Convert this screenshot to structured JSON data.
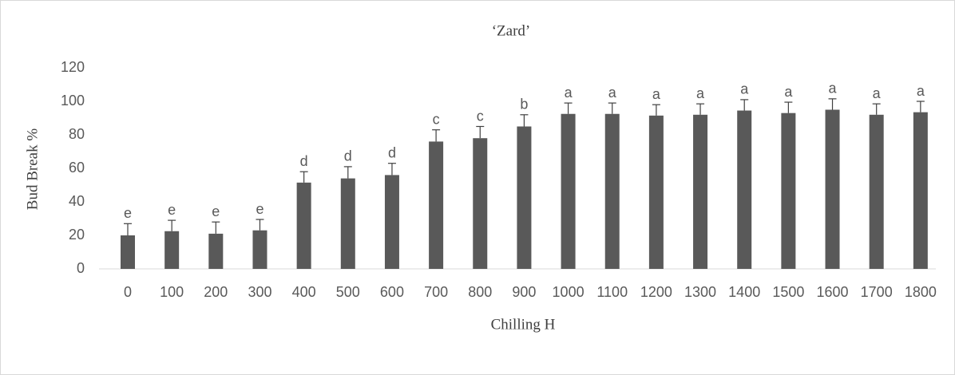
{
  "chart_data": {
    "type": "bar",
    "title": "‘Zard’",
    "x_label": "Chilling H",
    "y_label": "Bud Break %",
    "categories": [
      "0",
      "100",
      "200",
      "300",
      "400",
      "500",
      "600",
      "700",
      "800",
      "900",
      "1000",
      "1100",
      "1200",
      "1300",
      "1400",
      "1500",
      "1600",
      "1700",
      "1800"
    ],
    "values": [
      20,
      22.5,
      21,
      23,
      51.5,
      54,
      56,
      76,
      78,
      85,
      92.5,
      92.5,
      91.5,
      92,
      94.5,
      93,
      95,
      92,
      93.5
    ],
    "errors": [
      7,
      6.5,
      7,
      6.5,
      6.5,
      7,
      7,
      7,
      7,
      7,
      6.5,
      6.5,
      6.5,
      6.5,
      6.5,
      6.5,
      6.5,
      6.5,
      6.5
    ],
    "letters": [
      "e",
      "e",
      "e",
      "e",
      "d",
      "d",
      "d",
      "c",
      "c",
      "b",
      "a",
      "a",
      "a",
      "a",
      "a",
      "a",
      "a",
      "a",
      "a"
    ],
    "color": "#595959",
    "ylim": [
      0,
      120
    ],
    "yticks": [
      0,
      20,
      40,
      60,
      80,
      100,
      120
    ],
    "grid": false
  }
}
